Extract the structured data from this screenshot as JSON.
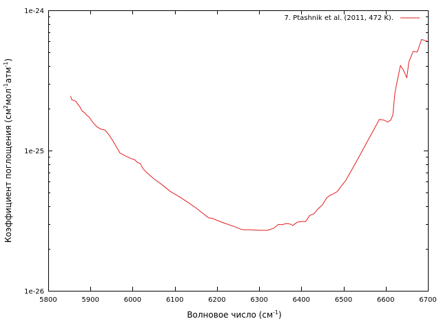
{
  "chart_data": {
    "type": "line",
    "title": "",
    "xlabel": "Волновое число (см",
    "xlabel_sup": "-1",
    "xlabel_end": ")",
    "ylabel_parts": [
      {
        "t": "Коэффициент поглощения (см",
        "sup": false
      },
      {
        "t": "2",
        "sup": true
      },
      {
        "t": "мол",
        "sup": false
      },
      {
        "t": "-1",
        "sup": true
      },
      {
        "t": "атм",
        "sup": false
      },
      {
        "t": "-1",
        "sup": true
      },
      {
        "t": ")",
        "sup": false
      }
    ],
    "xlim": [
      5800,
      6700
    ],
    "ylim": [
      1e-26,
      1e-24
    ],
    "yscale": "log",
    "x_ticks": [
      5800,
      5900,
      6000,
      6100,
      6200,
      6300,
      6400,
      6500,
      6600,
      6700
    ],
    "x_tick_labels": [
      "5800",
      "5900",
      "6000",
      "6100",
      "6200",
      "6300",
      "6400",
      "6500",
      "6600",
      "6700"
    ],
    "y_ticks": [
      1e-24,
      1e-25,
      1e-26
    ],
    "y_tick_labels": [
      "1e-24",
      "1e-25",
      "1e-26"
    ],
    "grid": false,
    "legend_position": "top-right",
    "series": [
      {
        "name": "7. Ptashnik et al. (2011, 472 K).",
        "color": "#e41a1c",
        "x": [
          5853,
          5856,
          5865,
          5875,
          5880,
          5887,
          5890,
          5897,
          5905,
          5915,
          5925,
          5935,
          5945,
          5955,
          5970,
          5985,
          5995,
          6005,
          6012,
          6018,
          6025,
          6035,
          6050,
          6070,
          6090,
          6110,
          6130,
          6150,
          6170,
          6180,
          6190,
          6200,
          6220,
          6240,
          6258,
          6265,
          6280,
          6300,
          6320,
          6335,
          6345,
          6355,
          6365,
          6372,
          6380,
          6390,
          6400,
          6410,
          6420,
          6430,
          6440,
          6450,
          6460,
          6468,
          6475,
          6485,
          6495,
          6505,
          6515,
          6525,
          6540,
          6555,
          6570,
          6585,
          6595,
          6605,
          6612,
          6617,
          6622,
          6628,
          6635,
          6642,
          6650,
          6655,
          6665,
          6675,
          6685,
          6692,
          6700
        ],
        "y": [
          2.45e-25,
          2.3e-25,
          2.25e-25,
          2.05e-25,
          1.92e-25,
          1.85e-25,
          1.8e-25,
          1.73e-25,
          1.6e-25,
          1.48e-25,
          1.42e-25,
          1.4e-25,
          1.28e-25,
          1.15e-25,
          9.6e-26,
          9.1e-26,
          8.8e-26,
          8.6e-26,
          8.2e-26,
          8.1e-26,
          7.4e-26,
          6.9e-26,
          6.3e-26,
          5.7e-26,
          5.1e-26,
          4.7e-26,
          4.3e-26,
          3.9e-26,
          3.5e-26,
          3.32e-26,
          3.28e-26,
          3.18e-26,
          3.02e-26,
          2.88e-26,
          2.74e-26,
          2.72e-26,
          2.72e-26,
          2.7e-26,
          2.7e-26,
          2.8e-26,
          2.97e-26,
          2.97e-26,
          3.02e-26,
          3e-26,
          2.93e-26,
          3.08e-26,
          3.12e-26,
          3.12e-26,
          3.45e-26,
          3.55e-26,
          3.85e-26,
          4.1e-26,
          4.6e-26,
          4.8e-26,
          4.9e-26,
          5.1e-26,
          5.6e-26,
          6.1e-26,
          6.9e-26,
          7.8e-26,
          9.4e-26,
          1.14e-25,
          1.38e-25,
          1.67e-25,
          1.65e-25,
          1.6e-25,
          1.65e-25,
          1.8e-25,
          2.6e-25,
          3.2e-25,
          4.05e-25,
          3.75e-25,
          3.3e-25,
          4.3e-25,
          5.1e-25,
          5.05e-25,
          6.2e-25,
          6.1e-25,
          6e-25
        ]
      }
    ]
  }
}
